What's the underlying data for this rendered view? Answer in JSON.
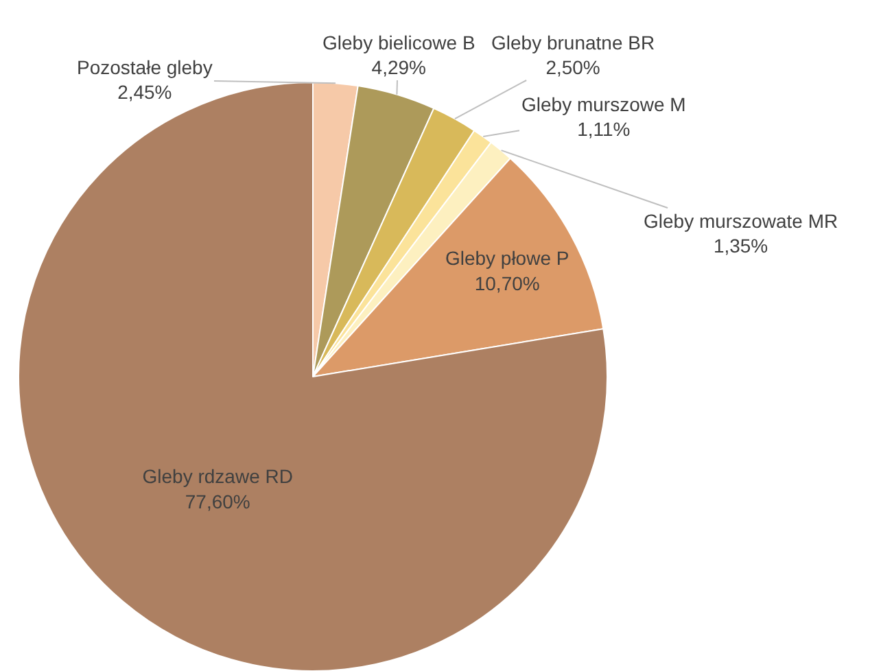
{
  "chart_data": {
    "type": "pie",
    "categories": [
      "Pozostałe gleby",
      "Gleby bielicowe B",
      "Gleby brunatne BR",
      "Gleby murszowe M",
      "Gleby murszowate MR",
      "Gleby płowe P",
      "Gleby rdzawe RD"
    ],
    "values": [
      2.45,
      4.29,
      2.5,
      1.11,
      1.35,
      10.7,
      77.6
    ],
    "value_labels": [
      "2,45%",
      "4,29%",
      "2,50%",
      "1,11%",
      "1,35%",
      "10,70%",
      "77,60%"
    ],
    "colors": [
      "#f6c9a8",
      "#ad9a5a",
      "#d8b95a",
      "#fbe39a",
      "#fdf0c0",
      "#dc9a68",
      "#ad8062"
    ]
  }
}
